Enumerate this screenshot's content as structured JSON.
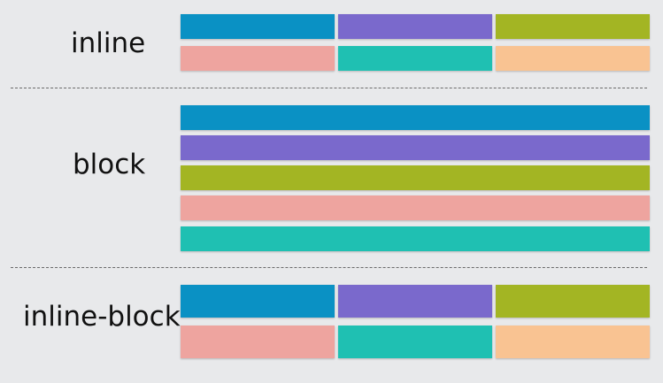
{
  "sections": {
    "inline": {
      "label": "inline"
    },
    "block": {
      "label": "block"
    },
    "inline_block": {
      "label": "inline-block"
    }
  },
  "colors": {
    "blue": "#0a91c4",
    "purple": "#7a69cc",
    "olive": "#a3b523",
    "pink": "#eea49f",
    "teal": "#1fc0b2",
    "peach": "#f9c392"
  }
}
